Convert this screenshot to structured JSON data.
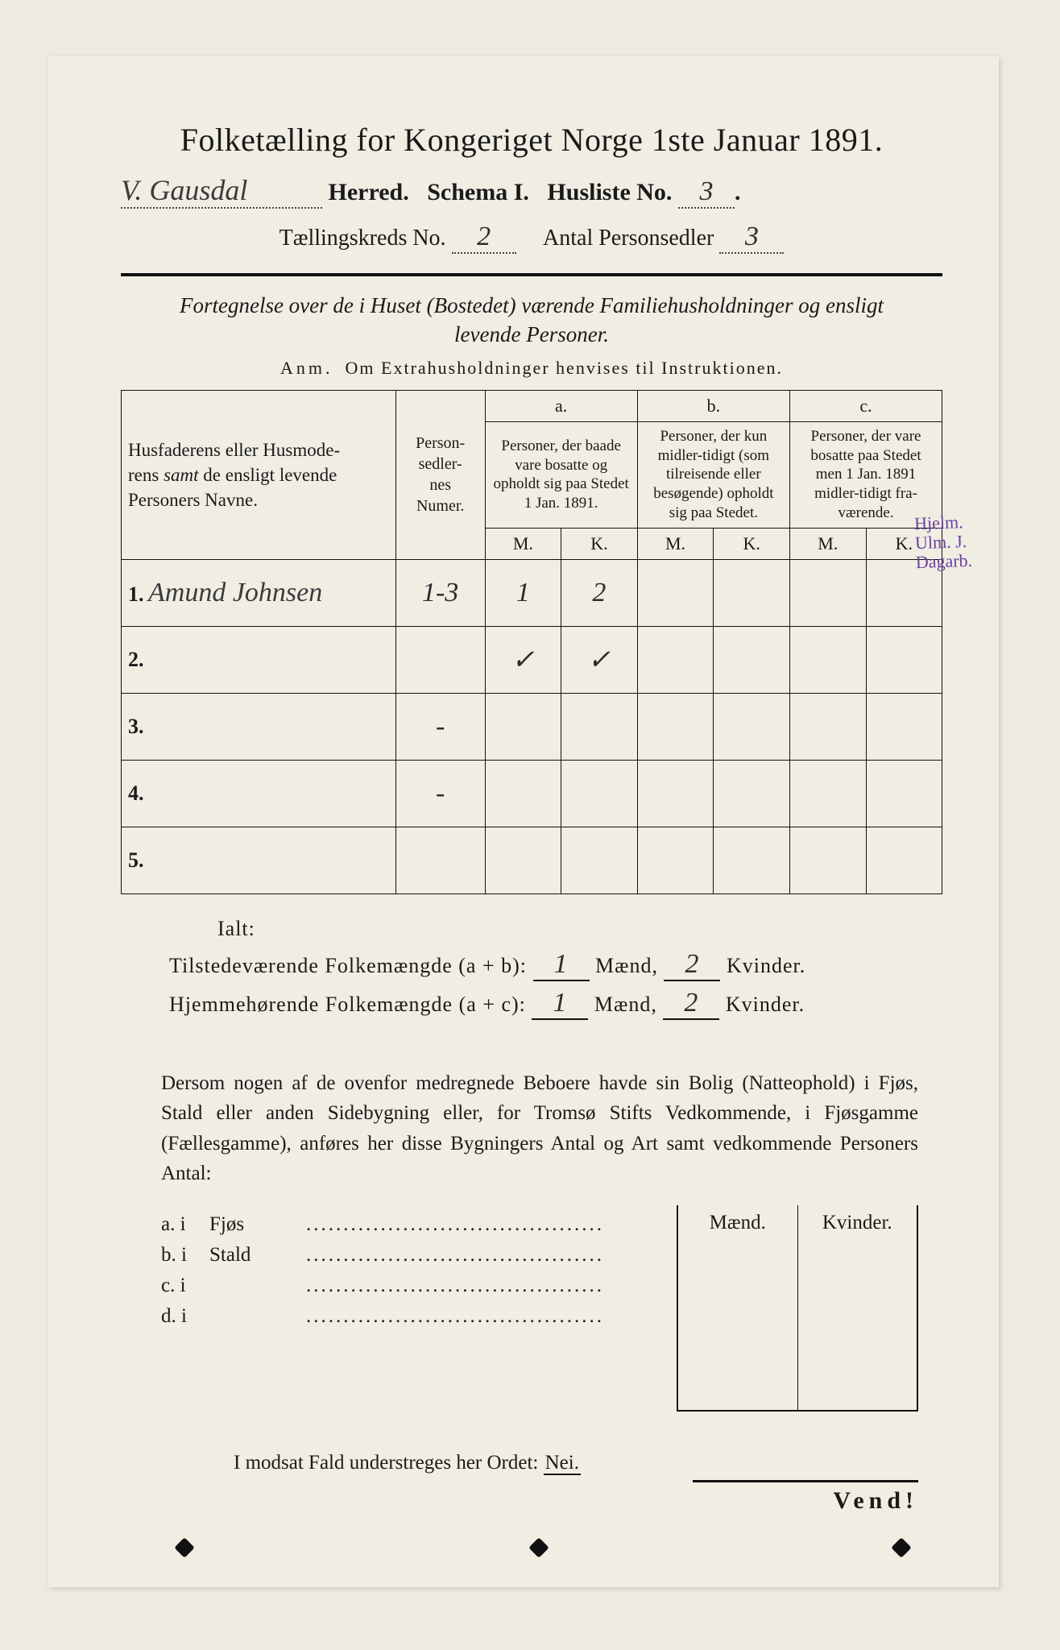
{
  "colors": {
    "paper": "#f0ede3",
    "bg": "#eceae2",
    "ink": "#1a1a1a",
    "green_rule": "#1d7a3a",
    "stamp": "#6b3fa0"
  },
  "title": "Folketælling for Kongeriget Norge 1ste Januar 1891.",
  "herred_value": "V. Gausdal",
  "herred_label": "Herred.",
  "schema_label": "Schema I.",
  "husliste_label": "Husliste No.",
  "husliste_no": "3",
  "kreds_label": "Tællingskreds No.",
  "kreds_no": "2",
  "antal_label": "Antal Personsedler",
  "antal_no": "3",
  "fortegnelse": "Fortegnelse over de i Huset (Bostedet) værende Familiehusholdninger og ensligt levende Personer.",
  "anm_label": "Anm.",
  "anm_text": "Om Extrahusholdninger henvises til Instruktionen.",
  "col_names": "Husfaderens eller Husmoderens samt de ensligt levende Personers Navne.",
  "col_num": "Person-\nsedler-\nnes\nNumer.",
  "col_a_tag": "a.",
  "col_a": "Personer, der baade vare bosatte og opholdt sig paa Stedet 1 Jan. 1891.",
  "col_b_tag": "b.",
  "col_b": "Personer, der kun midler-tidigt (som tilreisende eller besøgende) opholdt sig paa Stedet.",
  "col_c_tag": "c.",
  "col_c": "Personer, der vare bosatte paa Stedet men 1 Jan. 1891 midler-tidigt fra-værende.",
  "M": "M.",
  "K": "K.",
  "rows": [
    {
      "n": "1.",
      "name": "Amund Johnsen",
      "num": "1-3",
      "aM": "1",
      "aK": "2",
      "bM": "",
      "bK": "",
      "cM": "",
      "cK": ""
    },
    {
      "n": "2.",
      "name": "",
      "num": "",
      "aM": "✓",
      "aK": "✓",
      "bM": "",
      "bK": "",
      "cM": "",
      "cK": ""
    },
    {
      "n": "3.",
      "name": "",
      "num": "-",
      "aM": "",
      "aK": "",
      "bM": "",
      "bK": "",
      "cM": "",
      "cK": ""
    },
    {
      "n": "4.",
      "name": "",
      "num": "-",
      "aM": "",
      "aK": "",
      "bM": "",
      "bK": "",
      "cM": "",
      "cK": ""
    },
    {
      "n": "5.",
      "name": "",
      "num": "",
      "aM": "",
      "aK": "",
      "bM": "",
      "bK": "",
      "cM": "",
      "cK": ""
    }
  ],
  "stamp_lines": [
    "Hjelm.",
    "Ulm. J.",
    "Dagarb."
  ],
  "ialt": "Ialt:",
  "sum1_label": "Tilstedeværende Folkemængde (a + b):",
  "sum2_label": "Hjemmehørende Folkemængde (a + c):",
  "maend": "Mænd,",
  "kvinder": "Kvinder.",
  "sum1_m": "1",
  "sum1_k": "2",
  "sum2_m": "1",
  "sum2_k": "2",
  "para": "Dersom nogen af de ovenfor medregnede Beboere havde sin Bolig (Natteophold) i Fjøs, Stald eller anden Sidebygning eller, for Tromsø Stifts Vedkommende, i Fjøsgamme (Fællesgamme), anføres her disse Bygningers Antal og Art samt vedkommende Personers Antal:",
  "side_rows": [
    {
      "l": "a.  i",
      "t": "Fjøs"
    },
    {
      "l": "b.  i",
      "t": "Stald"
    },
    {
      "l": "c.  i",
      "t": ""
    },
    {
      "l": "d.  i",
      "t": ""
    }
  ],
  "side_head_m": "Mænd.",
  "side_head_k": "Kvinder.",
  "modsat": "I modsat Fald understreges her Ordet:",
  "nei": "Nei.",
  "vend": "Vend!"
}
